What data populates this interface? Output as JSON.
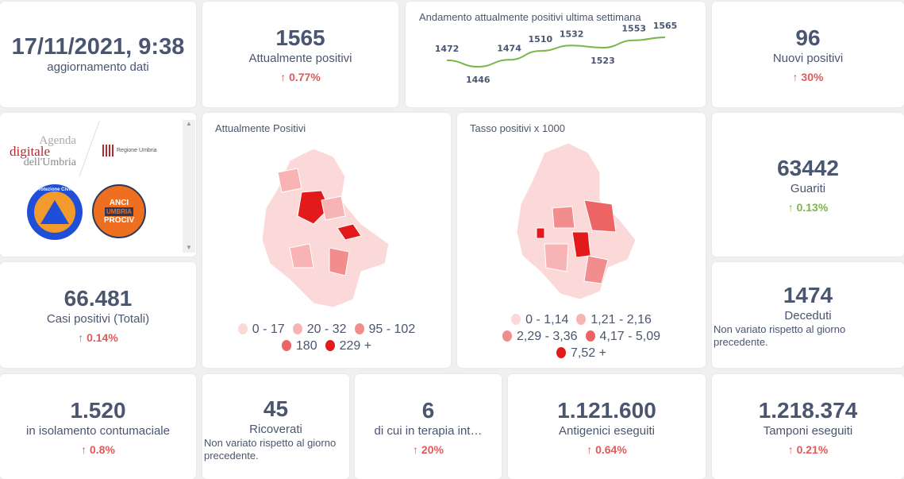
{
  "update": {
    "datetime": "17/11/2021, 9:38",
    "label": "aggiornamento dati"
  },
  "attuali": {
    "value": "1565",
    "label": "Attualmente positivi",
    "delta": "0.77%"
  },
  "chart_data": {
    "type": "line",
    "title": "Andamento attualmente positivi ultima settimana",
    "values": [
      1472,
      1446,
      1474,
      1510,
      1532,
      1523,
      1553,
      1565
    ],
    "labels": [
      "1472",
      "1446",
      "1474",
      "1510",
      "1532",
      "1523",
      "1553",
      "1565"
    ],
    "color": "#7ab648"
  },
  "nuovi": {
    "value": "96",
    "label": "Nuovi positivi",
    "delta": "30%"
  },
  "logos": {
    "agenda": [
      "Agenda",
      "digitale",
      "dell'Umbria"
    ],
    "regione": "Regione Umbria",
    "protezione": "Protezione Civile",
    "anci": [
      "ANCI",
      "UMBRIA",
      "PROCIV"
    ]
  },
  "map1": {
    "title": "Attualmente Positivi",
    "legend": [
      {
        "label": "0 - 17",
        "color": "#fcd9d9"
      },
      {
        "label": "20 - 32",
        "color": "#f8b4b4"
      },
      {
        "label": "95 - 102",
        "color": "#f28d8d"
      },
      {
        "label": "180",
        "color": "#ec6464"
      },
      {
        "label": "229 +",
        "color": "#e31a1c"
      }
    ]
  },
  "map2": {
    "title": "Tasso positivi x 1000",
    "legend": [
      {
        "label": "0 - 1,14",
        "color": "#fcd9d9"
      },
      {
        "label": "1,21 - 2,16",
        "color": "#f8b4b4"
      },
      {
        "label": "2,29 - 3,36",
        "color": "#f28d8d"
      },
      {
        "label": "4,17 - 5,09",
        "color": "#ec6464"
      },
      {
        "label": "7,52 +",
        "color": "#e31a1c"
      }
    ]
  },
  "guariti": {
    "value": "63442",
    "label": "Guariti",
    "delta": "0.13%"
  },
  "casi": {
    "value": "66.481",
    "label": "Casi positivi (Totali)",
    "delta": "0.14%"
  },
  "deceduti": {
    "value": "1474",
    "label": "Deceduti",
    "note": "Non variato rispetto al giorno precedente."
  },
  "isolamento": {
    "value": "1.520",
    "label": "in isolamento contumaciale",
    "delta": "0.8%"
  },
  "ricoverati": {
    "value": "45",
    "label": "Ricoverati",
    "note": "Non variato rispetto al giorno precedente."
  },
  "terapia": {
    "value": "6",
    "label": "di cui in terapia int…",
    "delta": "20%"
  },
  "antigenici": {
    "value": "1.121.600",
    "label": "Antigenici eseguiti",
    "delta": "0.64%"
  },
  "tamponi": {
    "value": "1.218.374",
    "label": "Tamponi eseguiti",
    "delta": "0.21%"
  },
  "arrow": "↑"
}
